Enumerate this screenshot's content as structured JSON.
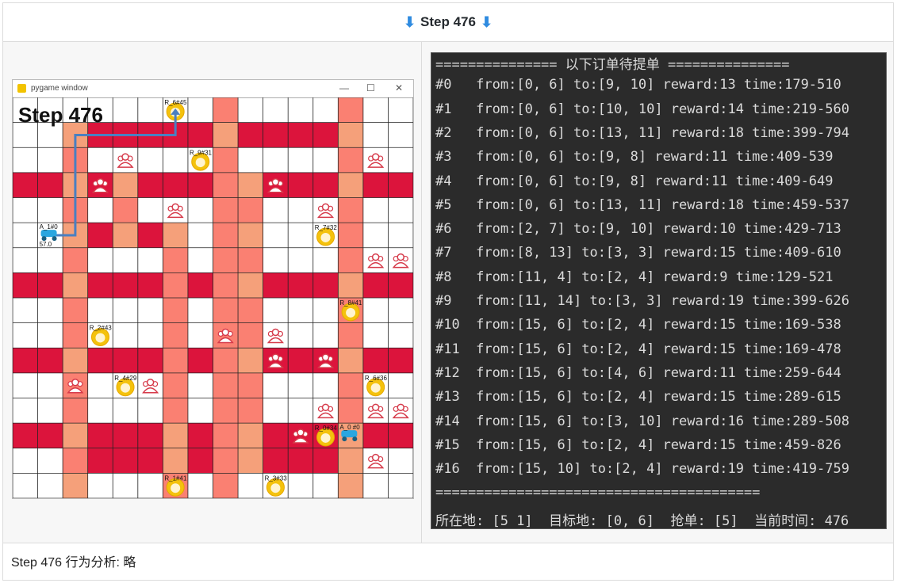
{
  "header": {
    "arrow_left": "⬇",
    "title": "Step 476",
    "arrow_right": "⬇"
  },
  "pygame": {
    "window_title": "pygame window",
    "step_text": "Step 476",
    "agent_label": "A_1#0",
    "agent_sub": "57.0",
    "agent0_label": "A_0 #0",
    "restaurants": [
      {
        "label": "R_6#45"
      },
      {
        "label": "R_9#31"
      },
      {
        "label": "R_7#32"
      },
      {
        "label": "R_8#41"
      },
      {
        "label": "R_2#43"
      },
      {
        "label": "R_4#29"
      },
      {
        "label": "R_6#36"
      },
      {
        "label": "R_0#34"
      },
      {
        "label": "R_1#41"
      },
      {
        "label": "R_3#33"
      }
    ],
    "colors": {
      "red": "#dc143c",
      "salmon": "#fa8072",
      "light": "#f5a07a",
      "path": "#4a7fc1"
    }
  },
  "terminal": {
    "lines": [
      "=============== 以下订单待提单 ===============",
      "#0   from:[0, 6] to:[9, 10] reward:13 time:179-510",
      "#1   from:[0, 6] to:[10, 10] reward:14 time:219-560",
      "#2   from:[0, 6] to:[13, 11] reward:18 time:399-794",
      "#3   from:[0, 6] to:[9, 8] reward:11 time:409-539",
      "#4   from:[0, 6] to:[9, 8] reward:11 time:409-649",
      "#5   from:[0, 6] to:[13, 11] reward:18 time:459-537",
      "#6   from:[2, 7] to:[9, 10] reward:10 time:429-713",
      "#7   from:[8, 13] to:[3, 3] reward:15 time:409-610",
      "#8   from:[11, 4] to:[2, 4] reward:9 time:129-521",
      "#9   from:[11, 14] to:[3, 3] reward:19 time:399-626",
      "#10  from:[15, 6] to:[2, 4] reward:15 time:169-538",
      "#11  from:[15, 6] to:[2, 4] reward:15 time:169-478",
      "#12  from:[15, 6] to:[4, 6] reward:11 time:259-644",
      "#13  from:[15, 6] to:[2, 4] reward:15 time:289-615",
      "#14  from:[15, 6] to:[3, 10] reward:16 time:289-508",
      "#15  from:[15, 6] to:[2, 4] reward:15 time:459-826",
      "#16  from:[15, 10] to:[2, 4] reward:19 time:419-759",
      "========================================",
      "所在地: [5 1]  目标地: [0, 6]  抢单: [5]  当前时间: 476"
    ]
  },
  "footer": {
    "text": "Step 476 行为分析:  略"
  }
}
